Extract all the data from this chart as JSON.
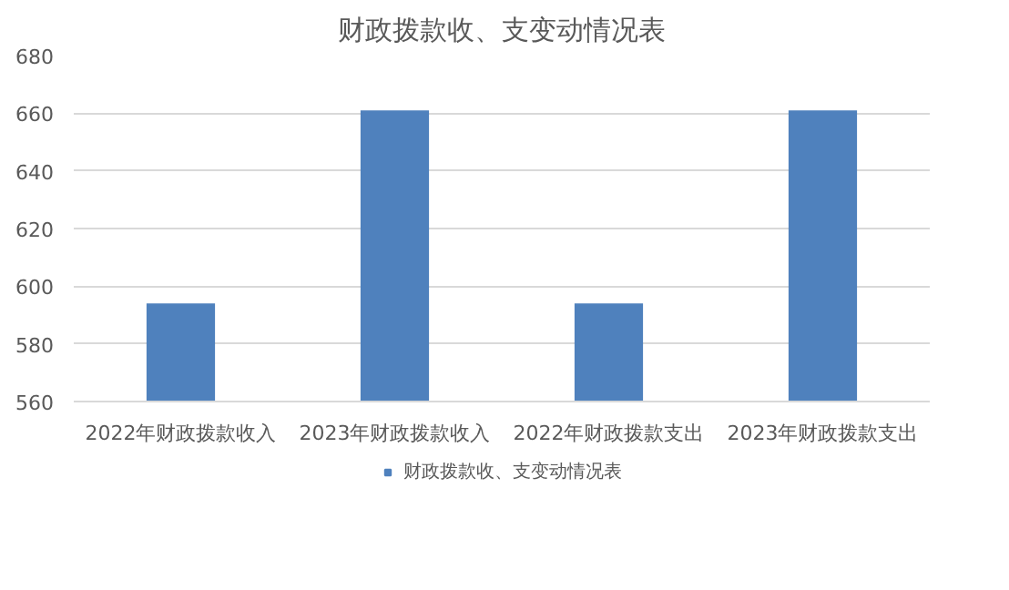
{
  "chart_data": {
    "type": "bar",
    "title": "财政拨款收、支变动情况表",
    "categories": [
      "2022年财政拨款收入",
      "2023年财政拨款收入",
      "2022年财政拨款支出",
      "2023年财政拨款支出"
    ],
    "series": [
      {
        "name": "财政拨款收、支变动情况表",
        "color": "#4f81bd",
        "values": [
          594,
          661,
          594,
          661
        ]
      }
    ],
    "ylim": [
      560,
      680
    ],
    "yticks": [
      560,
      580,
      600,
      620,
      640,
      660,
      680
    ],
    "grid": "y",
    "legend": "bottom"
  }
}
